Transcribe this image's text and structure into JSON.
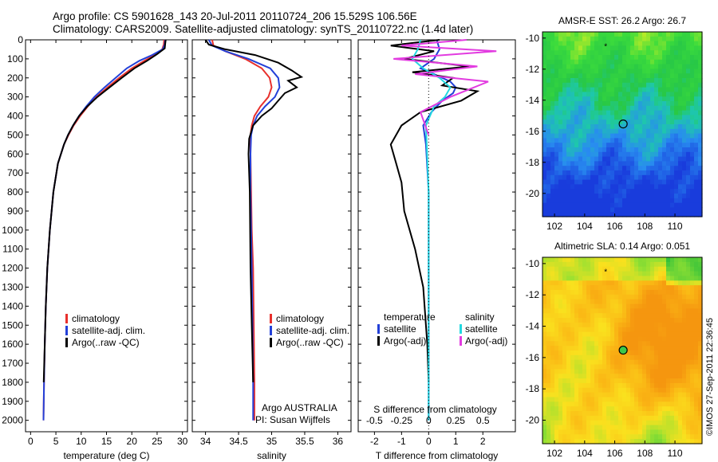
{
  "header": {
    "line1": "Argo profile: CS 5901628_143 20-Jul-2011 20110724_206 15.529S 106.56E",
    "line2": "Climatology: CARS2009. Satellite-adjusted climatology: synTS_20110722.nc (1.4d later)"
  },
  "side_note": "©IMOS 27-Sep-2011 22:36:45",
  "colors": {
    "climatology": "#e8302c",
    "satellite": "#2340d8",
    "argo": "#000000",
    "sat_salinity": "#22d8e0",
    "argo_salinity": "#e23be0"
  },
  "chart_data": [
    {
      "id": "temperature",
      "type": "line",
      "xlabel": "temperature (deg C)",
      "ylabel": "",
      "xlim": [
        -1,
        31
      ],
      "ylim": [
        2060,
        0
      ],
      "xticks": [
        "0",
        "5",
        "10",
        "15",
        "20",
        "25",
        "30"
      ],
      "yticks": [
        "0",
        "100",
        "200",
        "300",
        "400",
        "500",
        "600",
        "700",
        "800",
        "900",
        "1000",
        "1100",
        "1200",
        "1300",
        "1400",
        "1500",
        "1600",
        "1700",
        "1800",
        "1900",
        "2000"
      ],
      "legend": [
        "climatology",
        "satellite-adj. clim.",
        "Argo(..raw -QC)"
      ],
      "series": [
        {
          "name": "climatology",
          "color": "#e8302c",
          "x": [
            26.4,
            26.3,
            26.0,
            24.5,
            22.5,
            20.0,
            17.5,
            15.2,
            13.0,
            11.3,
            9.8,
            8.5,
            7.5,
            6.6,
            5.4,
            4.5,
            3.8,
            3.3,
            3.0,
            2.8,
            2.65,
            2.55
          ],
          "y": [
            0,
            25,
            50,
            80,
            110,
            150,
            200,
            250,
            300,
            350,
            400,
            450,
            500,
            550,
            650,
            800,
            1000,
            1200,
            1400,
            1600,
            1800,
            2000
          ]
        },
        {
          "name": "satellite-adj. clim.",
          "color": "#2340d8",
          "x": [
            26.6,
            26.5,
            26.1,
            24.0,
            21.5,
            19.0,
            16.8,
            14.6,
            12.6,
            11.0,
            9.6,
            8.4,
            7.4,
            6.6,
            5.4,
            4.5,
            3.8,
            3.3,
            3.0,
            2.8,
            2.65,
            2.55
          ],
          "y": [
            0,
            25,
            50,
            80,
            110,
            150,
            200,
            250,
            300,
            350,
            400,
            450,
            500,
            550,
            650,
            800,
            1000,
            1200,
            1400,
            1600,
            1800,
            2000
          ]
        },
        {
          "name": "Argo(..raw -QC)",
          "color": "#000000",
          "x": [
            26.7,
            26.6,
            26.5,
            25.0,
            23.0,
            20.5,
            18.0,
            15.6,
            13.2,
            11.2,
            9.6,
            8.4,
            7.4,
            6.6,
            5.4,
            4.5,
            3.8,
            3.3,
            3.0,
            2.8,
            2.6
          ],
          "y": [
            0,
            20,
            45,
            75,
            110,
            150,
            200,
            250,
            300,
            350,
            400,
            450,
            500,
            550,
            650,
            800,
            1000,
            1200,
            1400,
            1600,
            1800
          ]
        }
      ]
    },
    {
      "id": "salinity",
      "type": "line",
      "xlabel": "salinity",
      "xlim": [
        33.8,
        36.2
      ],
      "ylim": [
        2060,
        0
      ],
      "xticks": [
        "34",
        "34.5",
        "35",
        "35.5",
        "36"
      ],
      "legend": [
        "climatology",
        "satellite-adj. clim.",
        "Argo(..raw -QC)"
      ],
      "note": [
        "Argo AUSTRALIA",
        "PI: Susan Wijffels"
      ],
      "series": [
        {
          "name": "climatology",
          "color": "#e8302c",
          "x": [
            34.1,
            34.12,
            34.3,
            34.6,
            34.85,
            34.97,
            35.0,
            34.95,
            34.83,
            34.74,
            34.7,
            34.68,
            34.68,
            34.69,
            34.7,
            34.72,
            34.73,
            34.74,
            34.74
          ],
          "y": [
            0,
            30,
            60,
            100,
            150,
            200,
            250,
            300,
            350,
            400,
            450,
            500,
            600,
            800,
            1000,
            1200,
            1500,
            1800,
            2000
          ]
        },
        {
          "name": "satellite-adj. clim.",
          "color": "#2340d8",
          "x": [
            34.05,
            34.1,
            34.3,
            34.65,
            34.98,
            35.1,
            35.12,
            35.05,
            34.9,
            34.78,
            34.72,
            34.69,
            34.68,
            34.68,
            34.69,
            34.7,
            34.71,
            34.72,
            34.72
          ],
          "y": [
            0,
            30,
            60,
            100,
            150,
            200,
            250,
            300,
            350,
            400,
            450,
            500,
            600,
            800,
            1000,
            1200,
            1500,
            1800,
            2000
          ]
        },
        {
          "name": "Argo(..raw -QC)",
          "color": "#000000",
          "x": [
            34.0,
            34.05,
            34.3,
            34.75,
            35.1,
            35.3,
            35.45,
            35.25,
            35.38,
            35.2,
            35.1,
            35.0,
            34.85,
            34.72,
            34.66,
            34.65,
            34.67,
            34.68,
            34.7,
            34.72
          ],
          "y": [
            0,
            25,
            50,
            80,
            120,
            160,
            195,
            215,
            250,
            280,
            320,
            360,
            400,
            450,
            520,
            600,
            800,
            1200,
            1500,
            1800
          ]
        }
      ]
    },
    {
      "id": "difference",
      "type": "line",
      "xlabel": "T difference from climatology",
      "xlabel_top": "S difference from climatology",
      "xlim": [
        -2.6,
        3.2
      ],
      "ylim": [
        2060,
        0
      ],
      "xticks": [
        "-2",
        "-1",
        "0",
        "1",
        "2"
      ],
      "xticks_top": [
        "-0.5",
        "-0.25",
        "0",
        "0.25",
        "0.5"
      ],
      "legend_left_title": "temperature",
      "legend_right_title": "salinity",
      "legend_left": [
        "satellite",
        "Argo(-adj)"
      ],
      "legend_right": [
        "satellite",
        "Argo(-adj)"
      ],
      "series": [
        {
          "name": "temperature satellite",
          "color": "#2340d8",
          "x": [
            0.3,
            0.4,
            0.2,
            -0.3,
            0.2,
            0.8,
            1.0,
            0.9,
            0.5,
            0.1,
            -0.2,
            -0.1,
            0.0,
            0.0,
            0.0
          ],
          "y": [
            0,
            50,
            100,
            150,
            180,
            220,
            250,
            280,
            320,
            380,
            450,
            550,
            800,
            1200,
            2000
          ]
        },
        {
          "name": "temperature Argo(-adj)",
          "color": "#000000",
          "x": [
            0.4,
            -1.4,
            0.2,
            -0.9,
            1.5,
            -0.6,
            0.9,
            0.5,
            1.8,
            1.2,
            -0.3,
            -1.0,
            -1.4,
            -1.2,
            -1.0,
            -0.9,
            -0.5,
            -0.2,
            -0.05,
            0.0
          ],
          "y": [
            0,
            30,
            60,
            100,
            140,
            170,
            200,
            240,
            270,
            320,
            380,
            450,
            550,
            650,
            750,
            900,
            1100,
            1300,
            1600,
            1800
          ]
        },
        {
          "name": "salinity satellite",
          "color": "#22d8e0",
          "x": [
            -0.3,
            -0.4,
            -0.6,
            -0.2,
            0.4,
            0.8,
            0.6,
            0.2,
            -0.1,
            0.0,
            0.0
          ],
          "y": [
            0,
            50,
            100,
            150,
            200,
            250,
            300,
            350,
            450,
            800,
            2000
          ]
        },
        {
          "name": "salinity Argo(-adj)",
          "color": "#e23be0",
          "x": [
            1.4,
            -1.0,
            2.5,
            -1.3,
            1.8,
            -0.5,
            2.2,
            1.5,
            0.8,
            -0.3,
            0.0
          ],
          "y": [
            0,
            30,
            60,
            100,
            140,
            180,
            220,
            260,
            300,
            380,
            500
          ]
        }
      ]
    },
    {
      "id": "sst-map",
      "type": "heatmap",
      "title": "AMSR-E SST: 26.2 Argo: 26.7",
      "xlim": [
        101.2,
        111.8
      ],
      "ylim": [
        -21.5,
        -9.6
      ],
      "xticks": [
        "102",
        "104",
        "106",
        "108",
        "110"
      ],
      "yticks": [
        "-10",
        "-12",
        "-14",
        "-16",
        "-18",
        "-20"
      ],
      "argo_position": [
        106.56,
        -15.529
      ],
      "marker_label": "*"
    },
    {
      "id": "sla-map",
      "type": "heatmap",
      "title": "Altimetric SLA: 0.14 Argo: 0.051",
      "xlim": [
        101.2,
        111.8
      ],
      "ylim": [
        -21.5,
        -9.6
      ],
      "xticks": [
        "102",
        "104",
        "106",
        "108",
        "110"
      ],
      "yticks": [
        "-10",
        "-12",
        "-14",
        "-16",
        "-18",
        "-20"
      ],
      "argo_position": [
        106.56,
        -15.529
      ],
      "marker_label": "*"
    }
  ]
}
